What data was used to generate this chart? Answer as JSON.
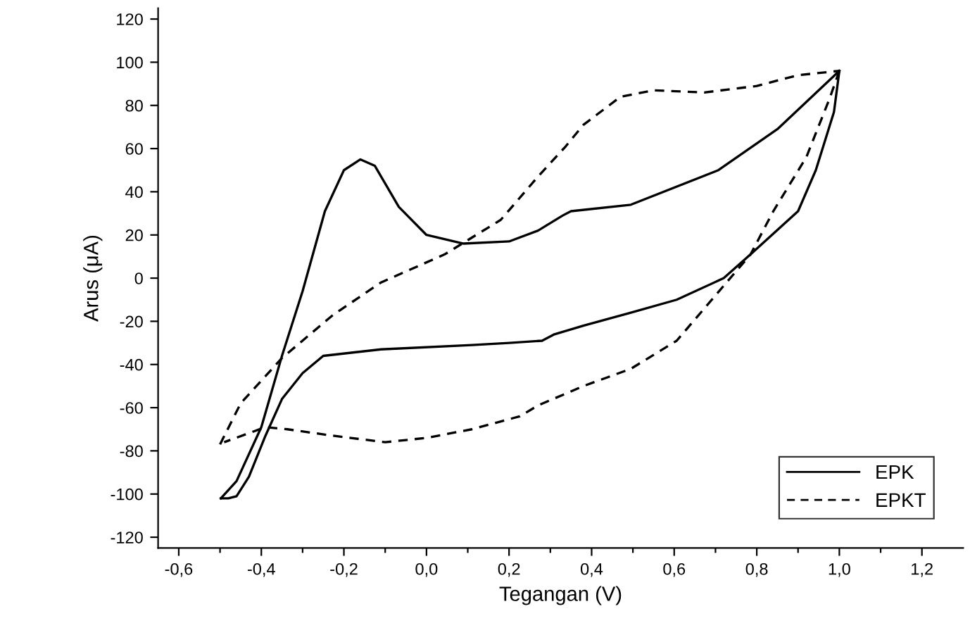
{
  "chart_data": {
    "type": "line",
    "xlabel": "Tegangan (V)",
    "ylabel": "Arus (μA)",
    "xlim": [
      -0.65,
      1.3
    ],
    "ylim": [
      -125,
      125
    ],
    "xticks": [
      {
        "value": -0.6,
        "label": "-0,6"
      },
      {
        "value": -0.5,
        "label": null
      },
      {
        "value": -0.4,
        "label": "-0,4"
      },
      {
        "value": -0.3,
        "label": null
      },
      {
        "value": -0.2,
        "label": "-0,2"
      },
      {
        "value": -0.1,
        "label": null
      },
      {
        "value": 0.0,
        "label": "0,0"
      },
      {
        "value": 0.1,
        "label": null
      },
      {
        "value": 0.2,
        "label": "0,2"
      },
      {
        "value": 0.3,
        "label": null
      },
      {
        "value": 0.4,
        "label": "0,4"
      },
      {
        "value": 0.5,
        "label": null
      },
      {
        "value": 0.6,
        "label": "0,6"
      },
      {
        "value": 0.7,
        "label": null
      },
      {
        "value": 0.8,
        "label": "0,8"
      },
      {
        "value": 0.9,
        "label": null
      },
      {
        "value": 1.0,
        "label": "1,0"
      },
      {
        "value": 1.1,
        "label": null
      },
      {
        "value": 1.2,
        "label": "1,2"
      }
    ],
    "yticks": [
      -120,
      -100,
      -80,
      -60,
      -40,
      -20,
      0,
      20,
      40,
      60,
      80,
      100,
      120
    ],
    "grid": false,
    "legend": "bottom right",
    "marker": "none",
    "series": [
      {
        "name": "EPK",
        "color": "#000000",
        "line_style": "solid",
        "x": [
          -0.498,
          -0.46,
          -0.4,
          -0.35,
          -0.3,
          -0.246,
          -0.2,
          -0.16,
          -0.125,
          -0.067,
          0.0,
          0.09,
          0.2,
          0.27,
          0.33,
          0.35,
          0.495,
          0.707,
          0.85,
          1.0
        ],
        "values": [
          -102,
          -94,
          -69,
          -36,
          -6,
          31,
          50,
          55,
          52,
          33,
          20,
          16,
          17,
          22,
          29,
          31,
          34,
          50,
          69,
          96
        ]
      },
      {
        "color": "#000000",
        "line_style": "solid",
        "x": [
          1.0,
          0.987,
          0.943,
          0.9,
          0.785,
          0.72,
          0.606,
          0.495,
          0.38,
          0.31,
          0.28,
          0.2,
          0.11,
          -0.11,
          -0.25,
          -0.3,
          -0.35,
          -0.39,
          -0.43,
          -0.46,
          -0.48,
          -0.498
        ],
        "values": [
          96,
          77,
          50,
          31,
          11,
          0,
          -10,
          -16,
          -22,
          -26,
          -29,
          -30,
          -31,
          -33,
          -36,
          -44,
          -56,
          -73,
          -92,
          -101,
          -102,
          -102
        ]
      },
      {
        "name": "EPKT",
        "color": "#000000",
        "line_style": "dashed",
        "x": [
          -0.5,
          -0.45,
          -0.35,
          -0.226,
          -0.11,
          0.044,
          0.18,
          0.27,
          0.337,
          0.38,
          0.47,
          0.55,
          0.673,
          0.8,
          0.9,
          1.0
        ],
        "values": [
          -77,
          -58,
          -37,
          -17,
          -2,
          11,
          27,
          47,
          61,
          71,
          84,
          87,
          86,
          89,
          94,
          96
        ]
      },
      {
        "color": "#000000",
        "line_style": "dashed",
        "x": [
          1.0,
          0.976,
          0.92,
          0.84,
          0.785,
          0.7,
          0.606,
          0.495,
          0.38,
          0.27,
          0.226,
          0.11,
          0.0,
          -0.1,
          -0.226,
          -0.337,
          -0.39,
          -0.49
        ],
        "values": [
          96,
          83,
          56,
          31,
          11,
          -8,
          -29,
          -42,
          -50,
          -59,
          -64,
          -70,
          -74,
          -76,
          -73,
          -70,
          -69,
          -76
        ]
      }
    ]
  }
}
